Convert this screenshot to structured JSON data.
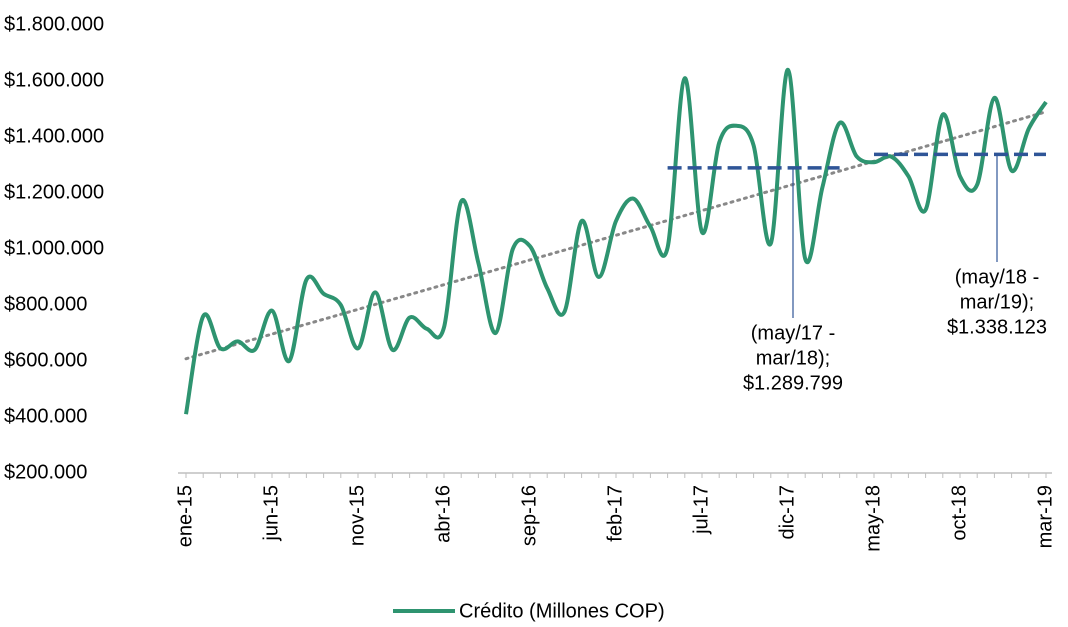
{
  "chart_data": {
    "type": "line",
    "categories": [
      "ene-15",
      null,
      null,
      null,
      null,
      "jun-15",
      null,
      null,
      null,
      null,
      "nov-15",
      null,
      null,
      null,
      null,
      "abr-16",
      null,
      null,
      null,
      null,
      "sep-16",
      null,
      null,
      null,
      null,
      "feb-17",
      null,
      null,
      null,
      null,
      "jul-17",
      null,
      null,
      null,
      null,
      "dic-17",
      null,
      null,
      null,
      null,
      "may-18",
      null,
      null,
      null,
      null,
      "oct-18",
      null,
      null,
      null,
      null,
      "mar-19"
    ],
    "series": [
      {
        "name": "Crédito (Millones COP)",
        "color": "#2e9470",
        "values": [
          410000,
          760000,
          645000,
          670000,
          640000,
          780000,
          600000,
          890000,
          840000,
          800000,
          645000,
          845000,
          640000,
          755000,
          715000,
          720000,
          1170000,
          950000,
          700000,
          1000000,
          1010000,
          860000,
          775000,
          1100000,
          900000,
          1100000,
          1180000,
          1080000,
          1005000,
          1610000,
          1060000,
          1380000,
          1440000,
          1370000,
          1020000,
          1640000,
          965000,
          1220000,
          1450000,
          1330000,
          1310000,
          1330000,
          1260000,
          1140000,
          1480000,
          1260000,
          1230000,
          1540000,
          1280000,
          1430000,
          1525000
        ]
      }
    ],
    "trend": {
      "color": "#888888",
      "values": [
        608000,
        1490000
      ]
    },
    "averages": [
      {
        "text": [
          "(may/17 -",
          "mar/18);"
        ],
        "value": 1289799,
        "value_label": "$1.289.799",
        "range": [
          28,
          38
        ],
        "color": "#2f5597"
      },
      {
        "text": [
          "(may/18 -",
          "mar/19);"
        ],
        "value": 1338123,
        "value_label": "$1.338.123",
        "range": [
          40,
          50
        ],
        "color": "#2f5597"
      }
    ],
    "ylim": [
      200000,
      1800000
    ],
    "yticks": [
      {
        "value": 200000,
        "label": "$200.000"
      },
      {
        "value": 400000,
        "label": "$400.000"
      },
      {
        "value": 600000,
        "label": "$600.000"
      },
      {
        "value": 800000,
        "label": "$800.000"
      },
      {
        "value": 1000000,
        "label": "$1.000.000"
      },
      {
        "value": 1200000,
        "label": "$1.200.000"
      },
      {
        "value": 1400000,
        "label": "$1.400.000"
      },
      {
        "value": 1600000,
        "label": "$1.600.000"
      },
      {
        "value": 1800000,
        "label": "$1.800.000"
      }
    ],
    "legend": "bottom"
  }
}
